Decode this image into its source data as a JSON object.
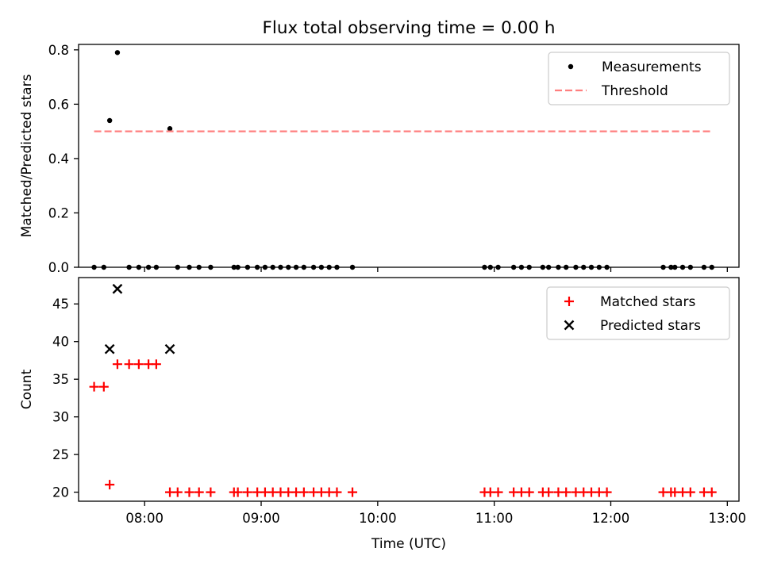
{
  "figure_title": "Flux total observing time = 0.00 h",
  "xlabel": "Time (UTC)",
  "chart_data": [
    {
      "type": "scatter",
      "title": "Flux total observing time = 0.00 h",
      "xlabel": "",
      "ylabel": "Matched/Predicted stars",
      "xlim": [
        "07:26",
        "13:06"
      ],
      "ylim": [
        0.0,
        0.82
      ],
      "xticks": [
        "08:00",
        "09:00",
        "10:00",
        "11:00",
        "12:00",
        "13:00"
      ],
      "yticks": [
        0.0,
        0.2,
        0.4,
        0.6,
        0.8
      ],
      "ytick_labels": [
        "0.0",
        "0.2",
        "0.4",
        "0.6",
        "0.8"
      ],
      "legend_position": "top-right",
      "series": [
        {
          "name": "Measurements",
          "marker": "dot",
          "color": "#000000",
          "points": [
            [
              "07:34",
              0.0
            ],
            [
              "07:39",
              0.0
            ],
            [
              "07:42",
              0.54
            ],
            [
              "07:46",
              0.79
            ],
            [
              "07:52",
              0.0
            ],
            [
              "07:57",
              0.0
            ],
            [
              "08:02",
              0.0
            ],
            [
              "08:06",
              0.0
            ],
            [
              "08:13",
              0.51
            ],
            [
              "08:17",
              0.0
            ],
            [
              "08:23",
              0.0
            ],
            [
              "08:28",
              0.0
            ],
            [
              "08:34",
              0.0
            ],
            [
              "08:46",
              0.0
            ],
            [
              "08:48",
              0.0
            ],
            [
              "08:53",
              0.0
            ],
            [
              "08:58",
              0.0
            ],
            [
              "09:02",
              0.0
            ],
            [
              "09:06",
              0.0
            ],
            [
              "09:10",
              0.0
            ],
            [
              "09:14",
              0.0
            ],
            [
              "09:18",
              0.0
            ],
            [
              "09:22",
              0.0
            ],
            [
              "09:27",
              0.0
            ],
            [
              "09:31",
              0.0
            ],
            [
              "09:35",
              0.0
            ],
            [
              "09:39",
              0.0
            ],
            [
              "09:47",
              0.0
            ],
            [
              "10:55",
              0.0
            ],
            [
              "10:58",
              0.0
            ],
            [
              "11:02",
              0.0
            ],
            [
              "11:10",
              0.0
            ],
            [
              "11:14",
              0.0
            ],
            [
              "11:18",
              0.0
            ],
            [
              "11:25",
              0.0
            ],
            [
              "11:28",
              0.0
            ],
            [
              "11:33",
              0.0
            ],
            [
              "11:37",
              0.0
            ],
            [
              "11:42",
              0.0
            ],
            [
              "11:46",
              0.0
            ],
            [
              "11:50",
              0.0
            ],
            [
              "11:54",
              0.0
            ],
            [
              "11:58",
              0.0
            ],
            [
              "12:27",
              0.0
            ],
            [
              "12:31",
              0.0
            ],
            [
              "12:33",
              0.0
            ],
            [
              "12:37",
              0.0
            ],
            [
              "12:41",
              0.0
            ],
            [
              "12:48",
              0.0
            ],
            [
              "12:52",
              0.0
            ]
          ]
        },
        {
          "name": "Threshold",
          "style": "dashed-line",
          "color": "#ff7f7f",
          "points": [
            [
              "07:34",
              0.5
            ],
            [
              "12:52",
              0.5
            ]
          ]
        }
      ]
    },
    {
      "type": "scatter",
      "title": "",
      "xlabel": "Time (UTC)",
      "ylabel": "Count",
      "xlim": [
        "07:26",
        "13:06"
      ],
      "ylim": [
        18.8,
        48.5
      ],
      "xticks": [
        "08:00",
        "09:00",
        "10:00",
        "11:00",
        "12:00",
        "13:00"
      ],
      "yticks": [
        20,
        25,
        30,
        35,
        40,
        45
      ],
      "ytick_labels": [
        "20",
        "25",
        "30",
        "35",
        "40",
        "45"
      ],
      "legend_position": "top-right",
      "series": [
        {
          "name": "Matched stars",
          "marker": "plus",
          "color": "#ff0000",
          "points": [
            [
              "07:34",
              34
            ],
            [
              "07:39",
              34
            ],
            [
              "07:42",
              21
            ],
            [
              "07:46",
              37
            ],
            [
              "07:52",
              37
            ],
            [
              "07:57",
              37
            ],
            [
              "08:02",
              37
            ],
            [
              "08:06",
              37
            ],
            [
              "08:13",
              20
            ],
            [
              "08:17",
              20
            ],
            [
              "08:23",
              20
            ],
            [
              "08:28",
              20
            ],
            [
              "08:34",
              20
            ],
            [
              "08:46",
              20
            ],
            [
              "08:48",
              20
            ],
            [
              "08:53",
              20
            ],
            [
              "08:58",
              20
            ],
            [
              "09:02",
              20
            ],
            [
              "09:06",
              20
            ],
            [
              "09:10",
              20
            ],
            [
              "09:14",
              20
            ],
            [
              "09:18",
              20
            ],
            [
              "09:22",
              20
            ],
            [
              "09:27",
              20
            ],
            [
              "09:31",
              20
            ],
            [
              "09:35",
              20
            ],
            [
              "09:39",
              20
            ],
            [
              "09:47",
              20
            ],
            [
              "10:55",
              20
            ],
            [
              "10:58",
              20
            ],
            [
              "11:02",
              20
            ],
            [
              "11:10",
              20
            ],
            [
              "11:14",
              20
            ],
            [
              "11:18",
              20
            ],
            [
              "11:25",
              20
            ],
            [
              "11:28",
              20
            ],
            [
              "11:33",
              20
            ],
            [
              "11:37",
              20
            ],
            [
              "11:42",
              20
            ],
            [
              "11:46",
              20
            ],
            [
              "11:50",
              20
            ],
            [
              "11:54",
              20
            ],
            [
              "11:58",
              20
            ],
            [
              "12:27",
              20
            ],
            [
              "12:31",
              20
            ],
            [
              "12:33",
              20
            ],
            [
              "12:37",
              20
            ],
            [
              "12:41",
              20
            ],
            [
              "12:48",
              20
            ],
            [
              "12:52",
              20
            ]
          ]
        },
        {
          "name": "Predicted stars",
          "marker": "x",
          "color": "#000000",
          "points": [
            [
              "07:42",
              39
            ],
            [
              "07:46",
              47
            ],
            [
              "08:13",
              39
            ]
          ]
        }
      ]
    }
  ]
}
